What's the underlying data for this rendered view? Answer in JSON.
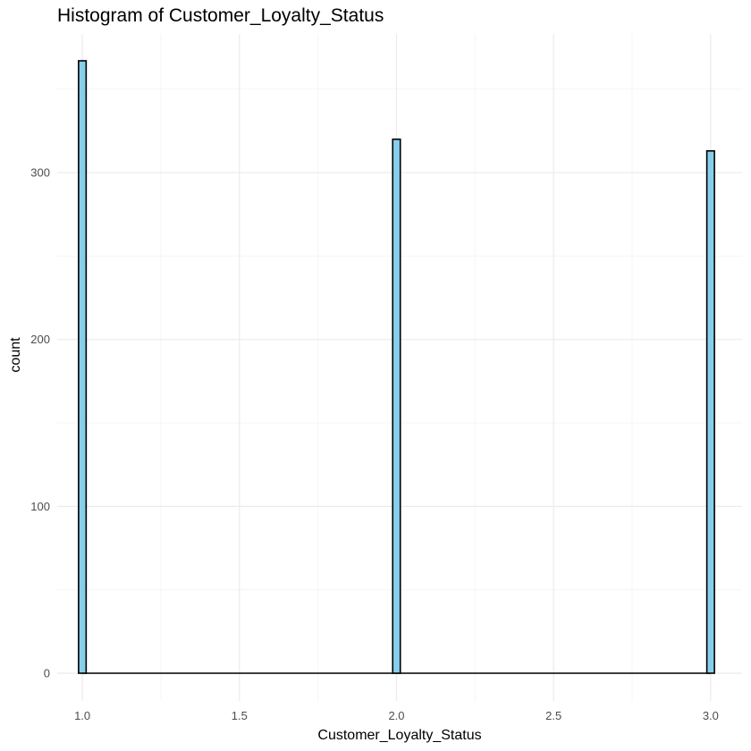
{
  "chart_data": {
    "type": "bar",
    "title": "Histogram of Customer_Loyalty_Status",
    "xlabel": "Customer_Loyalty_Status",
    "ylabel": "count",
    "x": [
      1,
      2,
      3
    ],
    "values": [
      367,
      320,
      313
    ],
    "xlim": [
      0.92,
      3.1
    ],
    "ylim": [
      0,
      382
    ],
    "x_ticks": [
      1.0,
      1.5,
      2.0,
      2.5,
      3.0
    ],
    "x_tick_labels": [
      "1.0",
      "1.5",
      "2.0",
      "2.5",
      "3.0"
    ],
    "y_ticks": [
      0,
      100,
      200,
      300
    ],
    "y_tick_labels": [
      "0",
      "100",
      "200",
      "300"
    ],
    "grid": true,
    "legend": "none",
    "colors": {
      "bar_fill": "#87CEEB",
      "bar_stroke": "#000000",
      "grid": "#ebebeb",
      "background": "#ffffff"
    }
  }
}
